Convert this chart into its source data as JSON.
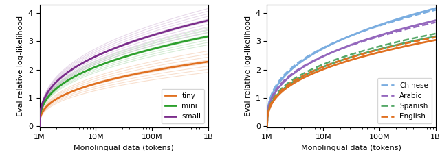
{
  "xlabel": "Monolingual data (tokens)",
  "ylabel": "Eval relative log-likelihood",
  "xtick_labels": [
    "1M",
    "10M",
    "100M",
    "1B"
  ],
  "yticks": [
    0,
    1,
    2,
    3,
    4
  ],
  "tiny_color": "#e07020",
  "mini_color": "#2ca02c",
  "small_color": "#7b2d8b",
  "left_legend": [
    {
      "label": "tiny",
      "color": "#e07020"
    },
    {
      "label": "mini",
      "color": "#2ca02c"
    },
    {
      "label": "small",
      "color": "#7b2d8b"
    }
  ],
  "chinese_color": "#7aade0",
  "arabic_color": "#9467bd",
  "spanish_color": "#55a868",
  "english_color": "#e07020",
  "right_legend": [
    {
      "label": "Chinese",
      "color": "#7aade0"
    },
    {
      "label": "Arabic",
      "color": "#9467bd"
    },
    {
      "label": "Spanish",
      "color": "#55a868"
    },
    {
      "label": "English",
      "color": "#e07020"
    }
  ]
}
